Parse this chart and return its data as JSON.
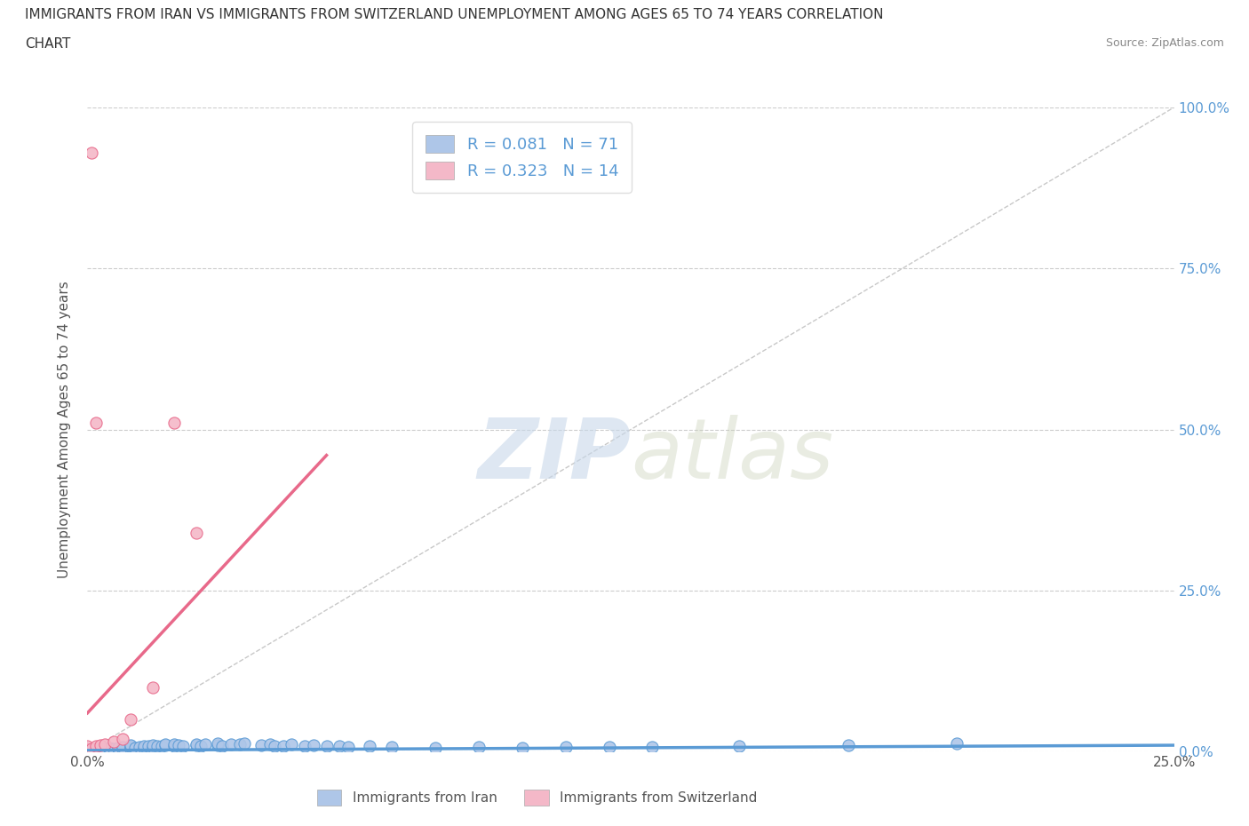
{
  "title_line1": "IMMIGRANTS FROM IRAN VS IMMIGRANTS FROM SWITZERLAND UNEMPLOYMENT AMONG AGES 65 TO 74 YEARS CORRELATION",
  "title_line2": "CHART",
  "source_text": "Source: ZipAtlas.com",
  "ylabel": "Unemployment Among Ages 65 to 74 years",
  "xlim": [
    0.0,
    0.25
  ],
  "ylim": [
    0.0,
    1.0
  ],
  "xtick_positions": [
    0.0,
    0.25
  ],
  "xtick_labels": [
    "0.0%",
    "25.0%"
  ],
  "ytick_positions": [
    0.0,
    0.25,
    0.5,
    0.75,
    1.0
  ],
  "ytick_labels": [
    "0.0%",
    "25.0%",
    "50.0%",
    "75.0%",
    "100.0%"
  ],
  "iran_color": "#aec6e8",
  "iran_color_dark": "#5b9bd5",
  "swiss_color": "#f4b8c8",
  "swiss_color_dark": "#e8698a",
  "iran_R": 0.081,
  "iran_N": 71,
  "swiss_R": 0.323,
  "swiss_N": 14,
  "legend_label_iran": "Immigrants from Iran",
  "legend_label_swiss": "Immigrants from Switzerland",
  "watermark_zip": "ZIP",
  "watermark_atlas": "atlas",
  "background_color": "#ffffff",
  "grid_color": "#cccccc",
  "title_color": "#333333",
  "iran_scatter_x": [
    0.0,
    0.0,
    0.0,
    0.0,
    0.0,
    0.0,
    0.0,
    0.0,
    0.0,
    0.002,
    0.002,
    0.003,
    0.004,
    0.005,
    0.005,
    0.005,
    0.006,
    0.007,
    0.007,
    0.008,
    0.008,
    0.01,
    0.01,
    0.01,
    0.01,
    0.011,
    0.012,
    0.013,
    0.013,
    0.014,
    0.015,
    0.015,
    0.016,
    0.017,
    0.018,
    0.018,
    0.02,
    0.02,
    0.021,
    0.022,
    0.025,
    0.025,
    0.026,
    0.027,
    0.03,
    0.03,
    0.031,
    0.033,
    0.035,
    0.036,
    0.04,
    0.042,
    0.043,
    0.045,
    0.047,
    0.05,
    0.052,
    0.055,
    0.058,
    0.06,
    0.065,
    0.07,
    0.08,
    0.09,
    0.1,
    0.11,
    0.12,
    0.13,
    0.15,
    0.175,
    0.2
  ],
  "iran_scatter_y": [
    0.0,
    0.0,
    0.0,
    0.0,
    0.001,
    0.001,
    0.002,
    0.002,
    0.003,
    0.002,
    0.004,
    0.003,
    0.005,
    0.003,
    0.004,
    0.006,
    0.005,
    0.004,
    0.006,
    0.005,
    0.007,
    0.005,
    0.007,
    0.008,
    0.01,
    0.006,
    0.007,
    0.006,
    0.009,
    0.008,
    0.007,
    0.01,
    0.009,
    0.008,
    0.01,
    0.012,
    0.008,
    0.012,
    0.01,
    0.009,
    0.01,
    0.012,
    0.009,
    0.011,
    0.01,
    0.013,
    0.009,
    0.012,
    0.011,
    0.013,
    0.01,
    0.012,
    0.008,
    0.009,
    0.011,
    0.008,
    0.01,
    0.009,
    0.008,
    0.007,
    0.008,
    0.007,
    0.006,
    0.007,
    0.006,
    0.007,
    0.007,
    0.007,
    0.009,
    0.01,
    0.013
  ],
  "swiss_scatter_x": [
    0.0,
    0.0,
    0.0,
    0.0,
    0.001,
    0.002,
    0.003,
    0.004,
    0.006,
    0.008,
    0.01,
    0.015,
    0.02,
    0.025
  ],
  "swiss_scatter_y": [
    0.0,
    0.002,
    0.004,
    0.008,
    0.004,
    0.008,
    0.01,
    0.012,
    0.015,
    0.02,
    0.05,
    0.1,
    0.51,
    0.34
  ],
  "swiss_outlier_x": [
    0.001
  ],
  "swiss_outlier_y": [
    0.93
  ],
  "swiss_mid_x": [
    0.002
  ],
  "swiss_mid_y": [
    0.51
  ],
  "iran_trendline_x": [
    0.0,
    0.25
  ],
  "iran_trendline_y": [
    0.002,
    0.01
  ],
  "swiss_trendline_x": [
    0.0,
    0.055
  ],
  "swiss_trendline_y": [
    0.06,
    0.46
  ],
  "diag_line_x": [
    0.0,
    0.25
  ],
  "diag_line_y": [
    0.0,
    1.0
  ]
}
